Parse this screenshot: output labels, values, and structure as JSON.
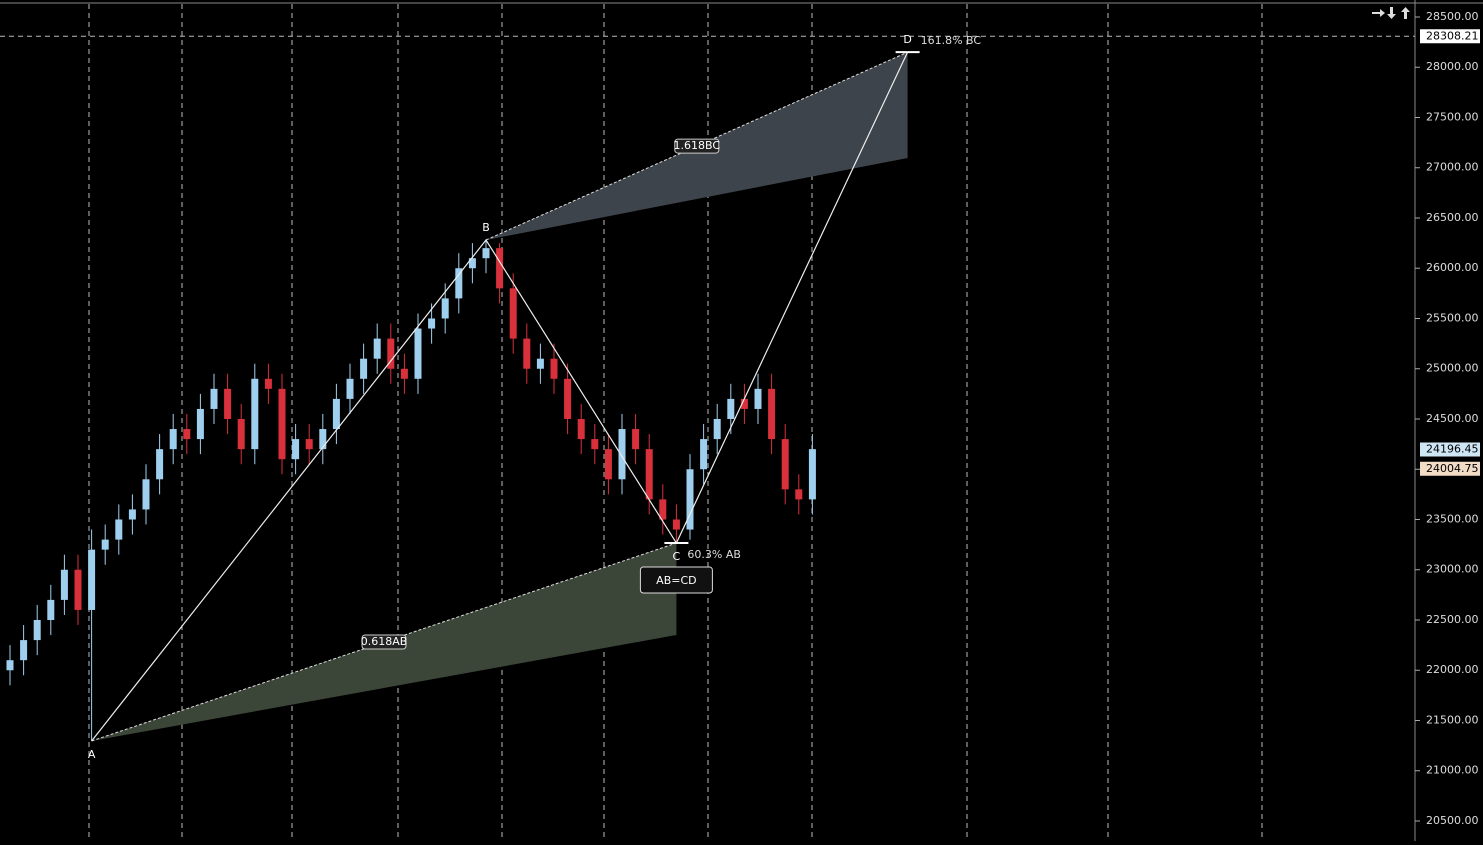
{
  "chart_data": {
    "type": "candlestick",
    "ylim": [
      20301,
      28669
    ],
    "yticks": [
      {
        "value": 20500,
        "label": "20500.00"
      },
      {
        "value": 21000,
        "label": "21000.00"
      },
      {
        "value": 21500,
        "label": "21500.00"
      },
      {
        "value": 22000,
        "label": "22000.00"
      },
      {
        "value": 22500,
        "label": "22500.00"
      },
      {
        "value": 23000,
        "label": "23000.00"
      },
      {
        "value": 23500,
        "label": "23500.00"
      },
      {
        "value": 24000,
        "label": "24000.00"
      },
      {
        "value": 24500,
        "label": "24500.00"
      },
      {
        "value": 25000,
        "label": "25000.00"
      },
      {
        "value": 25500,
        "label": "25500.00"
      },
      {
        "value": 26000,
        "label": "26000.00"
      },
      {
        "value": 26500,
        "label": "26500.00"
      },
      {
        "value": 27000,
        "label": "27000.00"
      },
      {
        "value": 27500,
        "label": "27500.00"
      },
      {
        "value": 28000,
        "label": "28000.00"
      },
      {
        "value": 28500,
        "label": "28500.00"
      }
    ],
    "up_color": "#9fcfee",
    "down_color": "#d8313b",
    "open": [
      22000,
      22100,
      22300,
      22500,
      22700,
      23000,
      22600,
      23200,
      23300,
      23500,
      23600,
      23900,
      24200,
      24400,
      24300,
      24600,
      24800,
      24500,
      24200,
      24900,
      24800,
      24100,
      24300,
      24200,
      24400,
      24700,
      24900,
      25100,
      25300,
      25000,
      24900,
      25400,
      25500,
      25700,
      26000,
      26100,
      26200,
      25800,
      25300,
      25000,
      25100,
      24900,
      24500,
      24300,
      24200,
      23900,
      24400,
      24200,
      23700,
      23500,
      23400,
      24000,
      24300,
      24500,
      24700,
      24600,
      24800,
      24300,
      23800,
      23700
    ],
    "high": [
      22250,
      22450,
      22650,
      22850,
      23150,
      23150,
      23400,
      23450,
      23650,
      23750,
      24050,
      24350,
      24550,
      24550,
      24750,
      24950,
      24950,
      24650,
      25050,
      25050,
      24950,
      24450,
      24450,
      24550,
      24850,
      25050,
      25250,
      25450,
      25450,
      25150,
      25550,
      25650,
      25850,
      26150,
      26250,
      26281,
      26250,
      25950,
      25450,
      25250,
      25250,
      25050,
      24650,
      24450,
      24350,
      24550,
      24550,
      24350,
      23850,
      23650,
      24150,
      24450,
      24650,
      24850,
      24850,
      24950,
      24950,
      24450,
      23950,
      24350
    ],
    "low": [
      21850,
      21950,
      22150,
      22350,
      22550,
      22450,
      21296,
      23050,
      23150,
      23350,
      23450,
      23750,
      24050,
      24150,
      24150,
      24450,
      24350,
      24050,
      24050,
      24650,
      23950,
      23950,
      24050,
      24050,
      24250,
      24550,
      24750,
      24950,
      24850,
      24750,
      24750,
      25250,
      25350,
      25550,
      25850,
      25950,
      25650,
      25150,
      24850,
      24850,
      24750,
      24350,
      24150,
      24050,
      23750,
      23750,
      24050,
      23550,
      23350,
      23266,
      23300,
      23850,
      24150,
      24350,
      24450,
      24450,
      24150,
      23650,
      23550,
      23550
    ],
    "close": [
      22100,
      22300,
      22500,
      22700,
      23000,
      22600,
      23200,
      23300,
      23500,
      23600,
      23900,
      24200,
      24400,
      24300,
      24600,
      24800,
      24500,
      24200,
      24900,
      24800,
      24100,
      24300,
      24200,
      24400,
      24700,
      24900,
      25100,
      25300,
      25000,
      24900,
      25400,
      25500,
      25700,
      26000,
      26100,
      26200,
      25800,
      25300,
      25000,
      25100,
      24900,
      24500,
      24300,
      24200,
      23900,
      24400,
      24200,
      23700,
      23500,
      23400,
      24000,
      24300,
      24500,
      24700,
      24600,
      24800,
      24300,
      23800,
      23700,
      24200
    ],
    "pattern": {
      "x": [
        6,
        35,
        49,
        66
      ],
      "values": [
        21296,
        26281,
        23266,
        28150
      ],
      "labels": [
        "A",
        "B",
        "C",
        "D"
      ]
    },
    "projections": [
      {
        "label": "0.618AB",
        "x": [
          6,
          49
        ],
        "top": [
          21296,
          23266
        ],
        "bottom": [
          21296,
          22351
        ],
        "color": "#3b4639"
      },
      {
        "label": "1.618BC",
        "x": [
          35,
          66
        ],
        "top": [
          26281,
          28150
        ],
        "bottom": [
          26281,
          27097
        ],
        "color": "#3e444b"
      }
    ],
    "annotations": {
      "d_note": "161.8% BC",
      "c_note": "60.3% AB",
      "pattern_name": "AB=CD"
    },
    "price_lines": [
      {
        "value": 28308.21,
        "color": "#ffffff"
      },
      {
        "value": 24196.45,
        "color": "#cfe6f5"
      },
      {
        "value": 24004.75,
        "color": "#f3dcc6"
      }
    ]
  }
}
